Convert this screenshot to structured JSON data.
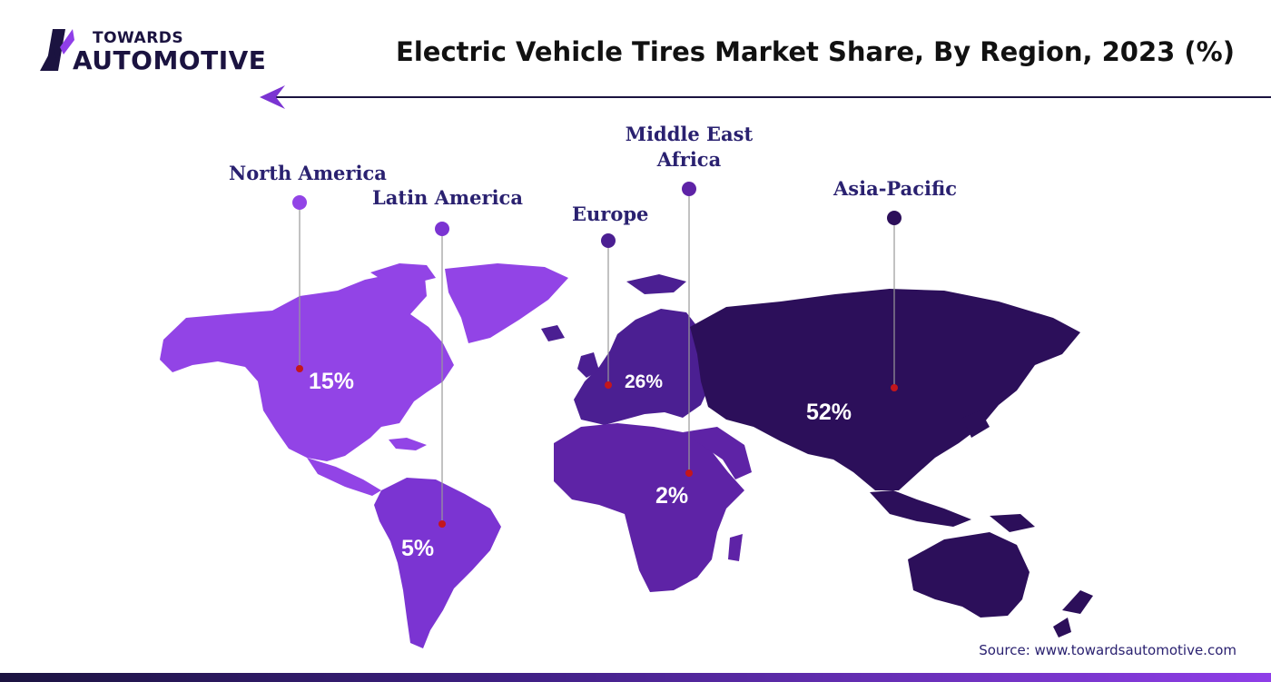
{
  "brand": {
    "line1": "TOWARDS",
    "line2": "AUTOMOTIVE"
  },
  "title": "Electric Vehicle Tires Market Share, By Region, 2023 (%)",
  "source": "Source: www.towardsautomotive.com",
  "colors": {
    "north_america": "#9244e6",
    "latin_america": "#7b34d2",
    "europe": "#4b1f92",
    "middle_east_africa": "#5e23a6",
    "asia_pacific": "#2c0f5a",
    "label": "#2a2170",
    "marker": "#c4161c"
  },
  "chart_data": {
    "type": "map",
    "title": "Electric Vehicle Tires Market Share, By Region, 2023 (%)",
    "unit": "%",
    "regions": [
      {
        "name": "North America",
        "value": 15,
        "display": "15%"
      },
      {
        "name": "Latin America",
        "value": 5,
        "display": "5%"
      },
      {
        "name": "Europe",
        "value": 26,
        "display": "26%"
      },
      {
        "name": "Middle East Africa",
        "value": 2,
        "display": "2%"
      },
      {
        "name": "Asia-Pacific",
        "value": 52,
        "display": "52%"
      }
    ]
  }
}
